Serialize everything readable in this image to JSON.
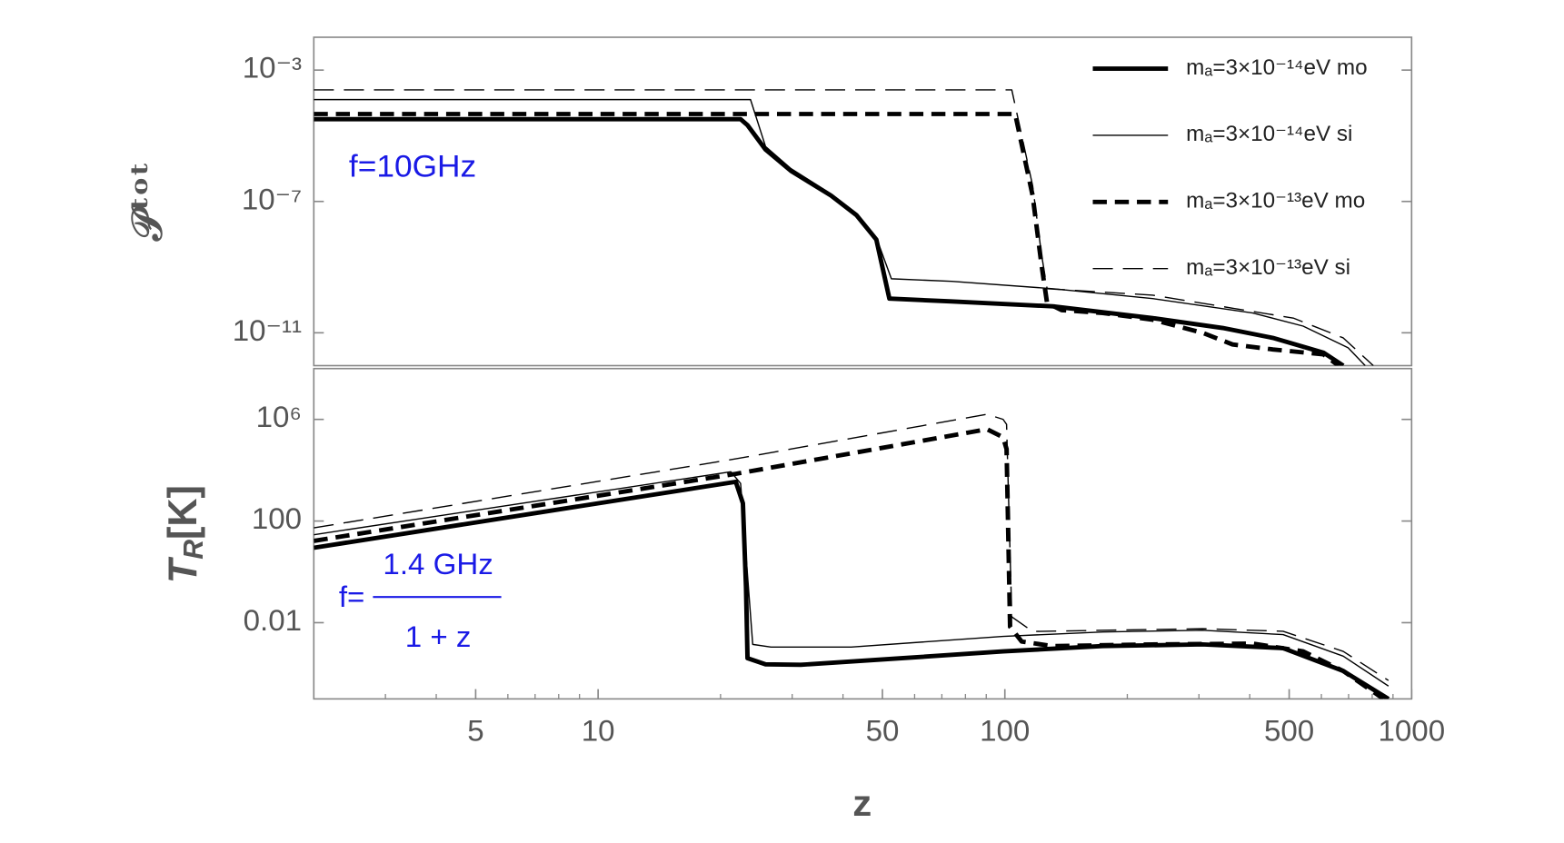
{
  "chart_data": [
    {
      "type": "line",
      "ylabel": "𝒫ᵗᵒᵗ",
      "annotation": "f=10GHz",
      "annotation_color": "#1a1ae6",
      "log_x": true,
      "log_y": true,
      "xlim": [
        2,
        1000
      ],
      "ylim": [
        1e-12,
        0.01
      ],
      "yticks": [
        {
          "value": 0.001,
          "label": "10⁻³"
        },
        {
          "value": 1e-07,
          "label": "10⁻⁷"
        },
        {
          "value": 1e-11,
          "label": "10⁻¹¹"
        }
      ],
      "legend": "upper right",
      "series": [
        {
          "name": "mₐ=3×10⁻¹⁴eV mo",
          "color": "#000000",
          "line_width": 4.5,
          "dashed": false,
          "x": [
            2,
            22.4,
            23.3,
            25.8,
            29.8,
            37.4,
            43.2,
            48.3,
            52,
            74,
            131,
            231,
            343,
            456,
            607,
            679
          ],
          "values": [
            3.2e-05,
            3.2e-05,
            2.1e-05,
            3.8e-06,
            8.5e-07,
            1.5e-07,
            3.8e-08,
            6.9e-09,
            1.1e-10,
            9e-11,
            6.4e-11,
            2.8e-11,
            1.4e-11,
            7e-12,
            2.5e-12,
            1e-12
          ]
        },
        {
          "name": "mₐ=3×10⁻¹⁴eV si",
          "color": "#000000",
          "line_width": 1.3,
          "dashed": false,
          "x": [
            2,
            23.7,
            25.8,
            29.8,
            37.4,
            43.2,
            48.3,
            52.6,
            74,
            131,
            231,
            407,
            541,
            698,
            769
          ],
          "values": [
            0.000126,
            0.000126,
            4.7e-06,
            1e-06,
            1.7e-07,
            4.3e-08,
            7.9e-09,
            4.4e-10,
            3.7e-10,
            2.2e-10,
            1.1e-10,
            4e-11,
            1.6e-11,
            3.5e-12,
            1e-12
          ]
        },
        {
          "name": "mₐ=3×10⁻¹³eV mo",
          "color": "#000000",
          "line_width": 4.5,
          "dashed": true,
          "x": [
            2,
            106,
            117,
            123,
            127,
            138,
            174,
            231,
            306,
            363,
            456,
            607,
            661
          ],
          "values": [
            4.6e-05,
            4.6e-05,
            1.5e-07,
            1.2e-09,
            8e-11,
            4.9e-11,
            4e-11,
            2.5e-11,
            1e-11,
            4.4e-12,
            3.1e-12,
            2.2e-12,
            1e-12
          ]
        },
        {
          "name": "mₐ=3×10⁻¹³eV si",
          "color": "#000000",
          "line_width": 1.3,
          "dashed": true,
          "x": [
            2,
            104,
            117,
            123,
            127,
            155,
            231,
            363,
            512,
            679,
            805
          ],
          "values": [
            0.00025,
            0.00025,
            3e-07,
            2.5e-09,
            2.2e-10,
            1.9e-10,
            1.4e-10,
            5.6e-11,
            2.8e-11,
            7e-12,
            1e-12
          ]
        }
      ]
    },
    {
      "type": "line",
      "ylabel": [
        "T",
        "R",
        "[K]"
      ],
      "xlabel": "z",
      "annotation": {
        "prefix": "f=",
        "numerator": "1.4 GHz",
        "denominator": "1 + z"
      },
      "annotation_color": "#1a1ae6",
      "log_x": true,
      "log_y": true,
      "xlim": [
        2,
        1000
      ],
      "ylim": [
        1e-05,
        100000000.0
      ],
      "xticks": [
        5,
        10,
        50,
        100,
        500,
        1000
      ],
      "xminor_ticks": [
        3,
        4,
        6,
        7,
        8,
        9,
        20,
        30,
        40,
        60,
        70,
        80,
        90,
        200,
        300,
        400,
        600,
        700,
        800,
        900
      ],
      "yticks": [
        {
          "value": 1000000,
          "label": "10⁶"
        },
        100,
        0.01
      ],
      "series": [
        {
          "name": "mₐ=3×10⁻¹⁴eV mo",
          "color": "#000000",
          "line_width": 4.5,
          "dashed": false,
          "x": [
            2,
            21.8,
            22.7,
            23.1,
            23.3,
            25.8,
            31.5,
            55.7,
            99,
            174,
            306,
            483,
            679,
            877
          ],
          "values": [
            8.9,
            3500,
            500,
            0.25,
            0.0004,
            0.00023,
            0.00022,
            0.0004,
            0.00074,
            0.0012,
            0.0014,
            0.001,
            0.000126,
            1e-05
          ]
        },
        {
          "name": "mₐ=3×10⁻¹⁴eV si",
          "color": "#000000",
          "line_width": 1.3,
          "dashed": false,
          "x": [
            2,
            21.2,
            22.4,
            24,
            26.6,
            41.9,
            99,
            174,
            306,
            483,
            679,
            877
          ],
          "values": [
            29,
            8700,
            3000,
            0.0014,
            0.0011,
            0.0011,
            0.0029,
            0.0043,
            0.005,
            0.0034,
            0.00048,
            3.2e-05
          ]
        },
        {
          "name": "mₐ=3×10⁻¹³eV mo",
          "color": "#000000",
          "line_width": 4.5,
          "dashed": true,
          "x": [
            2,
            21.8,
            90.4,
            99,
            101,
            103,
            110,
            131,
            231,
            407,
            541,
            679,
            853
          ],
          "values": [
            16.6,
            7200,
            410000,
            200000,
            68000,
            0.0069,
            0.0018,
            0.0012,
            0.0014,
            0.0015,
            0.00074,
            0.000126,
            1e-05
          ]
        },
        {
          "name": "mₐ=3×10⁻¹³eV si",
          "color": "#000000",
          "line_width": 1.3,
          "dashed": true,
          "x": [
            2,
            21.8,
            90.4,
            99,
            101,
            104,
            117,
            174,
            306,
            483,
            679,
            877
          ],
          "values": [
            54,
            28000,
            1600000,
            1000000,
            640000,
            0.017,
            0.0045,
            0.005,
            0.0058,
            0.0046,
            0.00074,
            5.3e-05
          ]
        }
      ]
    }
  ]
}
